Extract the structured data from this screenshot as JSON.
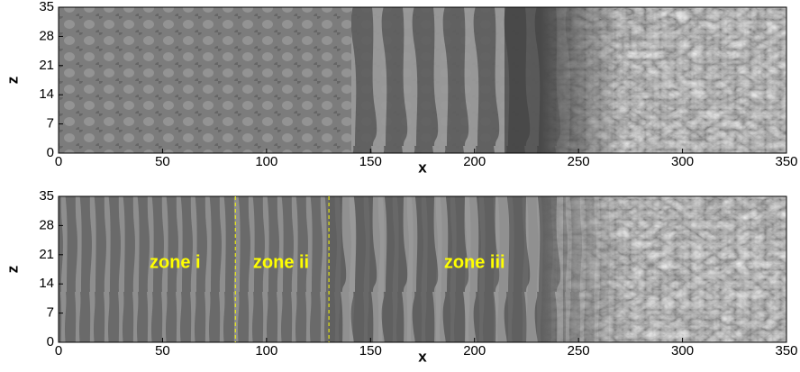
{
  "chart_data": [
    {
      "type": "contour",
      "xlabel": "x",
      "ylabel": "z",
      "xlim": [
        0,
        350
      ],
      "ylim": [
        0,
        35
      ],
      "xticks": [
        0,
        50,
        100,
        150,
        200,
        250,
        300,
        350
      ],
      "yticks": [
        0,
        7,
        14,
        21,
        28,
        35
      ]
    },
    {
      "type": "contour",
      "xlabel": "x",
      "ylabel": "z",
      "xlim": [
        0,
        350
      ],
      "ylim": [
        0,
        35
      ],
      "xticks": [
        0,
        50,
        100,
        150,
        200,
        250,
        300,
        350
      ],
      "yticks": [
        0,
        7,
        14,
        21,
        28,
        35
      ],
      "boundaries": [
        85,
        130
      ],
      "annotations": [
        {
          "text": "zone i",
          "x": 56,
          "z": 19
        },
        {
          "text": "zone ii",
          "x": 107,
          "z": 19
        },
        {
          "text": "zone iii",
          "x": 200,
          "z": 19
        }
      ]
    }
  ]
}
